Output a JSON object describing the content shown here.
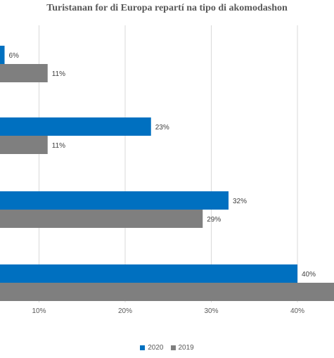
{
  "chart_data": {
    "type": "bar",
    "orientation": "horizontal",
    "title": "Turistanan for di Europa repartí na tipo di akomodashon",
    "categories": [
      "",
      "",
      "",
      ""
    ],
    "series": [
      {
        "name": "2020",
        "color": "#0070c0",
        "values": [
          6,
          23,
          32,
          40
        ],
        "labels": [
          "6%",
          "23%",
          "32%",
          "40%"
        ]
      },
      {
        "name": "2019",
        "color": "#7f7f7f",
        "values": [
          11,
          11,
          29,
          45
        ],
        "labels": [
          "11%",
          "11%",
          "29%",
          ""
        ]
      }
    ],
    "x_ticks": [
      "10%",
      "20%",
      "30%",
      "40%"
    ],
    "x_tick_values": [
      10,
      20,
      30,
      40
    ],
    "grid": true,
    "legend_position": "bottom"
  }
}
